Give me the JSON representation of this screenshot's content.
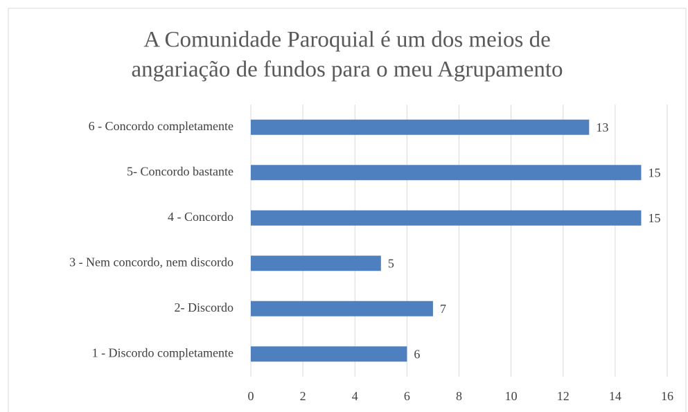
{
  "chart_data": {
    "type": "bar",
    "orientation": "horizontal",
    "title": [
      "A Comunidade Paroquial é um dos meios de",
      "angariação de fundos para o meu Agrupamento"
    ],
    "categories": [
      "6 - Concordo completamente",
      "5- Concordo bastante",
      "4 - Concordo",
      "3 - Nem concordo, nem discordo",
      "2- Discordo",
      "1 - Discordo completamente"
    ],
    "values": [
      13,
      15,
      15,
      5,
      7,
      6
    ],
    "color": "#4e7fbf",
    "xlim": [
      0,
      16
    ],
    "xticks": [
      0,
      2,
      4,
      6,
      8,
      10,
      12,
      14,
      16
    ],
    "grid": true
  }
}
